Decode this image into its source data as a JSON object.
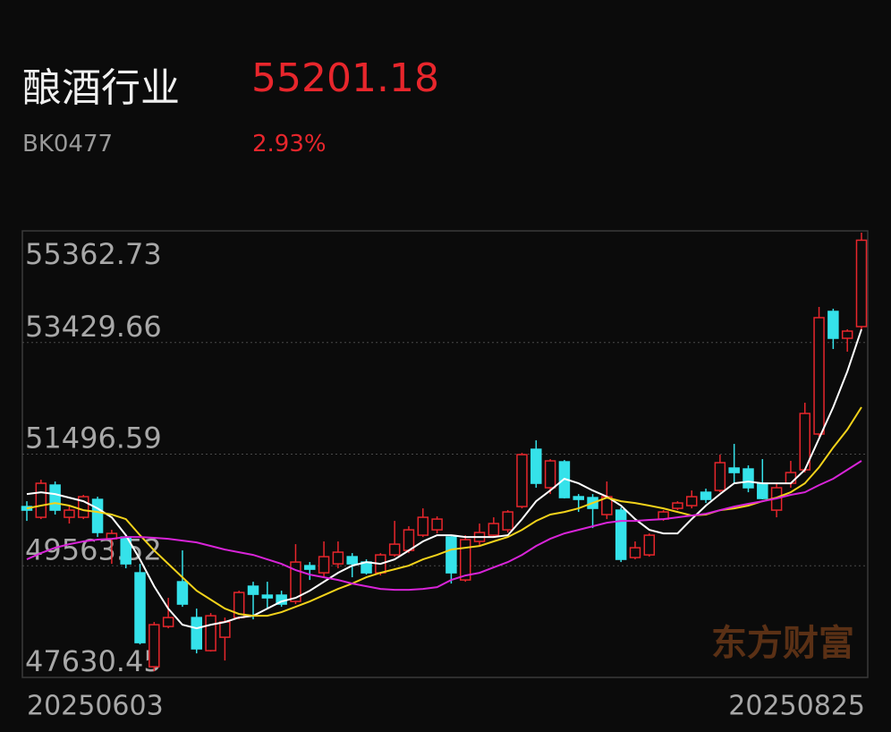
{
  "header": {
    "name": "酿酒行业",
    "price": 55201.18,
    "code": "BK0477",
    "change": "2.93%"
  },
  "chart_data": {
    "type": "candlestick",
    "categories": [
      "20250603",
      null,
      null,
      null,
      null,
      null,
      null,
      null,
      null,
      null,
      null,
      null,
      null,
      null,
      null,
      null,
      null,
      null,
      null,
      null,
      null,
      null,
      null,
      null,
      null,
      null,
      null,
      null,
      null,
      null,
      null,
      null,
      null,
      null,
      null,
      null,
      null,
      null,
      null,
      null,
      null,
      null,
      null,
      null,
      null,
      null,
      null,
      null,
      null,
      null,
      null,
      null,
      null,
      null,
      null,
      null,
      null,
      null,
      null,
      "20250825"
    ],
    "open": [
      50589,
      50403,
      50961,
      50403,
      50403,
      50713,
      50031,
      50062,
      49442,
      47815,
      48512,
      49287,
      48667,
      48094,
      48326,
      48667,
      49210,
      49055,
      49055,
      48946,
      49566,
      49442,
      49597,
      49721,
      49628,
      49442,
      49752,
      49830,
      50093,
      50186,
      50062,
      49318,
      49985,
      50093,
      50186,
      50589,
      51581,
      50915,
      51364,
      50760,
      50744,
      50450,
      50527,
      49706,
      49752,
      50372,
      50558,
      50605,
      50837,
      50868,
      51256,
      51240,
      50992,
      50527,
      50992,
      51225,
      51845,
      53968,
      53503,
      53705
    ],
    "high": [
      50682,
      51054,
      51023,
      50605,
      50791,
      50760,
      50186,
      50093,
      49597,
      48590,
      49008,
      49830,
      48822,
      48745,
      48667,
      49132,
      49287,
      49287,
      49132,
      49938,
      49628,
      49985,
      49985,
      49783,
      49675,
      49783,
      50341,
      50248,
      50558,
      50419,
      50093,
      50093,
      50295,
      50403,
      50527,
      51519,
      51736,
      51411,
      51395,
      50806,
      50806,
      51023,
      50574,
      49985,
      50124,
      50527,
      50682,
      50868,
      50899,
      51488,
      51674,
      51302,
      51411,
      50992,
      51380,
      52387,
      54046,
      54015,
      53658,
      55332
    ],
    "low": [
      50341,
      50372,
      50450,
      50295,
      50372,
      50062,
      49597,
      49520,
      48202,
      47737,
      48481,
      48853,
      48047,
      48078,
      47923,
      48636,
      48636,
      48822,
      48853,
      48900,
      49318,
      49365,
      49520,
      49365,
      49411,
      49396,
      49721,
      49783,
      50062,
      50124,
      49256,
      49287,
      49907,
      50062,
      50140,
      50558,
      50915,
      50806,
      50729,
      50496,
      50217,
      50372,
      49628,
      49675,
      49721,
      50341,
      50527,
      50558,
      50651,
      50837,
      50992,
      50837,
      50713,
      50403,
      50915,
      51178,
      51798,
      53317,
      53271,
      53658
    ],
    "close": [
      50527,
      50992,
      50527,
      50527,
      50760,
      50140,
      50124,
      49597,
      48233,
      48543,
      48667,
      48900,
      48125,
      48698,
      48590,
      49101,
      49070,
      49008,
      48900,
      49628,
      49504,
      49721,
      49799,
      49597,
      49442,
      49752,
      49938,
      50186,
      50403,
      50372,
      49442,
      50016,
      50140,
      50295,
      50496,
      51488,
      50992,
      51380,
      50744,
      50713,
      50558,
      50760,
      49675,
      49876,
      50093,
      50496,
      50651,
      50760,
      50713,
      51349,
      51178,
      50915,
      50729,
      50915,
      51178,
      52201,
      53860,
      53503,
      53627,
      55201
    ],
    "up_color": "#e8262c",
    "down_color": "#35e2ea",
    "series": [
      {
        "color": "#ffffff",
        "values": [
          50806,
          50837,
          50806,
          50744,
          50682,
          50558,
          50403,
          50093,
          49675,
          49210,
          48822,
          48543,
          48481,
          48543,
          48590,
          48667,
          48698,
          48822,
          48946,
          49008,
          49132,
          49287,
          49442,
          49566,
          49628,
          49597,
          49675,
          49830,
          49985,
          50093,
          50093,
          50062,
          50062,
          50062,
          50093,
          50372,
          50682,
          50868,
          51070,
          50992,
          50868,
          50760,
          50605,
          50372,
          50186,
          50124,
          50124,
          50372,
          50605,
          50806,
          50992,
          51023,
          50992,
          50992,
          50992,
          51225,
          51767,
          52310,
          52930,
          53658
        ]
      },
      {
        "color": "#f2d21b",
        "values": [
          50558,
          50605,
          50651,
          50605,
          50527,
          50496,
          50450,
          50372,
          50093,
          49830,
          49597,
          49365,
          49132,
          48977,
          48822,
          48729,
          48698,
          48698,
          48760,
          48853,
          48946,
          49055,
          49163,
          49256,
          49365,
          49442,
          49504,
          49566,
          49675,
          49752,
          49845,
          49876,
          49907,
          49985,
          50062,
          50186,
          50341,
          50450,
          50496,
          50558,
          50651,
          50744,
          50682,
          50651,
          50605,
          50558,
          50496,
          50434,
          50450,
          50527,
          50558,
          50605,
          50682,
          50744,
          50837,
          50992,
          51271,
          51612,
          51922,
          52310
        ]
      },
      {
        "color": "#d824d8",
        "values": [
          49675,
          49783,
          49876,
          49938,
          49985,
          50016,
          50031,
          50062,
          50062,
          50047,
          50031,
          50000,
          49969,
          49907,
          49845,
          49799,
          49752,
          49675,
          49597,
          49489,
          49411,
          49365,
          49318,
          49256,
          49210,
          49163,
          49148,
          49148,
          49163,
          49194,
          49318,
          49396,
          49442,
          49535,
          49628,
          49752,
          49907,
          50031,
          50124,
          50186,
          50248,
          50310,
          50341,
          50341,
          50357,
          50372,
          50403,
          50434,
          50465,
          50527,
          50589,
          50636,
          50682,
          50729,
          50791,
          50837,
          50961,
          51070,
          51225,
          51380
        ]
      }
    ],
    "ylim": [
      47630.45,
      55362.73
    ],
    "yticks": [
      47630.45,
      49563.52,
      51496.59,
      53429.66,
      55362.73
    ],
    "grid": true,
    "watermark": "东方财富"
  }
}
